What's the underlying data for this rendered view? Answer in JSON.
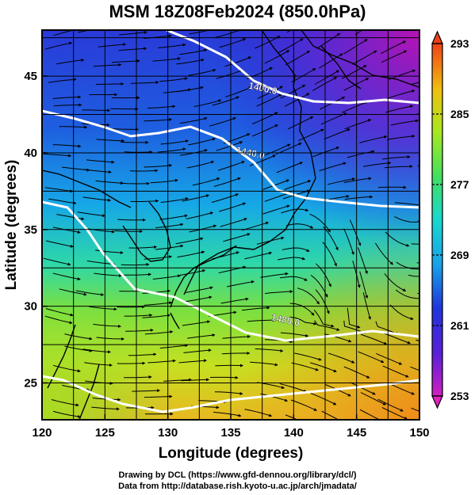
{
  "title": "MSM 18Z08Feb2024 (850.0hPa)",
  "xaxis": {
    "label": "Longitude (degrees)",
    "ticks": [
      "120",
      "125",
      "130",
      "135",
      "140",
      "145",
      "150"
    ]
  },
  "yaxis": {
    "label": "Latitude  (degrees)",
    "ticks": [
      "25",
      "30",
      "35",
      "40",
      "45"
    ]
  },
  "colorbar": {
    "ticks": [
      "293",
      "285",
      "277",
      "269",
      "261",
      "253"
    ]
  },
  "contours": [
    {
      "label": "1400.0",
      "lon": 137.5,
      "lat": 44.0
    },
    {
      "label": "1440.0",
      "lon": 136.5,
      "lat": 39.8
    },
    {
      "label": "1480.0",
      "lon": 139.3,
      "lat": 28.9
    }
  ],
  "credits": {
    "line1": "Drawing by DCL (https://www.gfd-dennou.org/library/dcl/)",
    "line2": "Data from http://database.rish.kyoto-u.ac.jp/arch/jmadata/"
  }
}
